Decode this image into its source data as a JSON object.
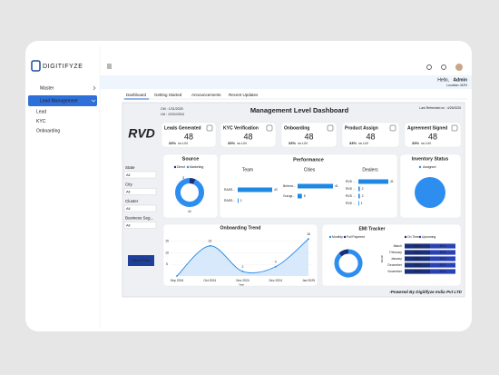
{
  "sidebar": {
    "logo": "DIGITIFYZE",
    "menu": [
      "Master",
      "Lead Management"
    ],
    "submenu": [
      "Lead",
      "KYC",
      "Onboarding"
    ]
  },
  "header": {
    "greeting": "Hello,",
    "user": "Admin",
    "location": "Location: MZH"
  },
  "tabs": [
    "Dashboard",
    "Getting Started",
    "Announcements",
    "Recent Updates"
  ],
  "dashboard": {
    "cm": "CM : 1/31/2025",
    "lm": "LM : 12/31/2024",
    "title": "Management Level Dashboard",
    "refreshed": "Last Refreshed on : 4/25/2025",
    "brand": "RVD",
    "kpis": [
      {
        "label": "Leads Generated",
        "value": 48,
        "change": "33%",
        "vs": "vs LM"
      },
      {
        "label": "KYC Verification",
        "value": 48,
        "change": "33%",
        "vs": "vs LM"
      },
      {
        "label": "Onboarding",
        "value": 48,
        "change": "33%",
        "vs": "vs LM"
      },
      {
        "label": "Product Assign",
        "value": 48,
        "change": "33%",
        "vs": "vs LM"
      },
      {
        "label": "Agreement Signed",
        "value": 48,
        "change": "33%",
        "vs": "vs LM"
      }
    ],
    "filters": [
      {
        "label": "State",
        "value": "All"
      },
      {
        "label": "City",
        "value": "All"
      },
      {
        "label": "Cluster",
        "value": "All"
      },
      {
        "label": "Business Seg...",
        "value": "All"
      }
    ],
    "reset": "Reset Filter",
    "source": {
      "title": "Source",
      "legend": [
        "Direct",
        "Marketing"
      ],
      "colors": [
        "#1b2f7a",
        "#2e8ef0"
      ],
      "values": [
        3,
        41
      ]
    },
    "performance": {
      "title": "Performance",
      "team": {
        "title": "Team",
        "labels": [
          "RASS...",
          "RASS..."
        ],
        "values": [
          42,
          1
        ]
      },
      "cities": {
        "title": "Cities",
        "labels": [
          "Behera...",
          "Gurugr..."
        ],
        "values": [
          41,
          5
        ]
      },
      "dealers": {
        "title": "Dealers",
        "labels": [
          "RVD ...",
          "RVD ...",
          "RVD ...",
          "RVD ..."
        ],
        "values": [
          41,
          2,
          2,
          1
        ]
      }
    },
    "inventory": {
      "title": "Inventory Status",
      "legend": "Assigned"
    },
    "trend": {
      "title": "Onboarding Trend",
      "x": [
        "Sep 2024",
        "Oct 2024",
        "Nov 2024",
        "Dec 2024",
        "Jan 2025"
      ],
      "values": [
        0,
        13,
        2,
        4,
        16
      ],
      "ylim": [
        0,
        18
      ],
      "yticks": [
        5,
        10,
        15
      ],
      "xlabel": "Year"
    },
    "emi": {
      "title": "EMI Tracker",
      "legend": [
        "Monthly",
        "Full Payment"
      ],
      "donut": [
        88,
        12
      ],
      "bar_legend": [
        "On Time",
        "Upcoming"
      ],
      "ylabel": "Month",
      "months": [
        "March",
        "February",
        "January",
        "December",
        "November"
      ],
      "on_time": {
        "values": [
          50,
          50,
          50,
          50,
          50
        ],
        "value_labels": [
          "50%",
          "50%",
          "50%",
          "50%",
          "50%"
        ]
      },
      "upcoming": {
        "values": [
          50,
          50,
          50,
          50,
          50
        ],
        "value_labels": [
          "50%",
          "50%",
          "50%",
          "50%",
          "50%"
        ]
      }
    },
    "footer": "-Powered By Digitifyze India Pvt LTD"
  }
}
